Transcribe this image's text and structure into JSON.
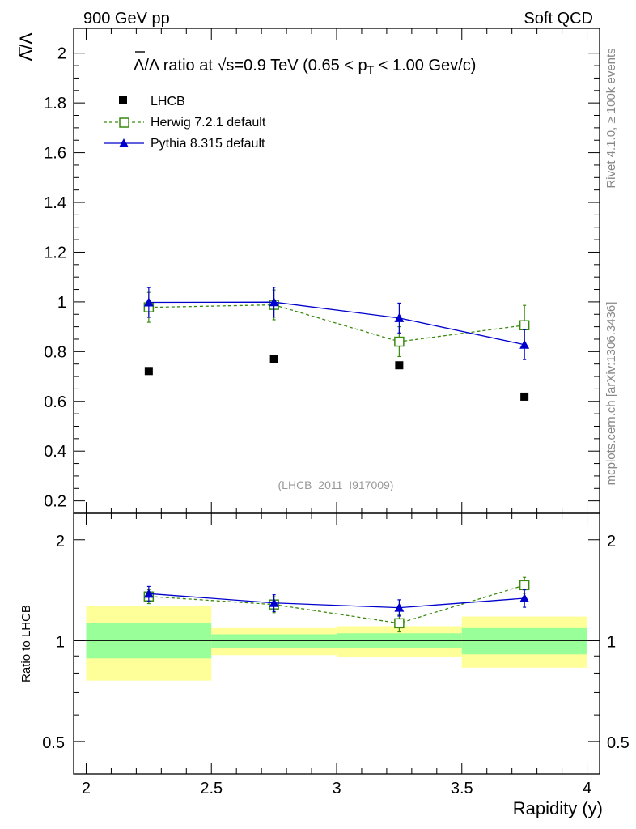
{
  "header": {
    "left": "900 GeV pp",
    "right": "Soft QCD"
  },
  "side_labels": {
    "top": "Rivet 4.1.0, ≥ 100k events",
    "bottom": "mcplots.cern.ch [arXiv:1306.3436]"
  },
  "colors": {
    "data": "#000000",
    "herwig": "#3a8a0e",
    "pythia": "#0000cc",
    "band_outer": "#ffff99",
    "band_inner": "#99ff99"
  },
  "chart_data": {
    "type": "scatter",
    "title": "Λ̅/Λ ratio at √s=0.9 TeV (0.65 < pT < 1.00 Gev/c)",
    "title_parts": {
      "pre": "/Λ ratio at ",
      "root": "s",
      "mid": "=0.9 TeV (0.65 < p",
      "sub": "T",
      "post": " < 1.00 Gev/c)",
      "lambda": "Λ"
    },
    "ylabel": "Λ/Λ",
    "ylabel_parts": {
      "num": "Λ",
      "den": "/Λ"
    },
    "xlabel": "Rapidity (y)",
    "ratio_ylabel": "Ratio to LHCB",
    "analysis_id": "(LHCB_2011_I917009)",
    "xlim": [
      1.95,
      4.05
    ],
    "ylim": [
      0.15,
      2.1
    ],
    "ratio_ylim": [
      0.4,
      2.4
    ],
    "x_ticks": [
      2,
      2.5,
      3,
      3.5,
      4
    ],
    "x_tick_labels": [
      "2",
      "2.5",
      "3",
      "3.5",
      "4"
    ],
    "y_ticks": [
      0.2,
      0.4,
      0.6,
      0.8,
      1.0,
      1.2,
      1.4,
      1.6,
      1.8,
      2.0
    ],
    "y_tick_labels": [
      "0.2",
      "0.4",
      "0.6",
      "0.8",
      "1",
      "1.2",
      "1.4",
      "1.6",
      "1.8",
      "2"
    ],
    "ratio_y_ticks": [
      0.5,
      1,
      2
    ],
    "ratio_y_tick_labels": [
      "0.5",
      "1",
      "2"
    ],
    "legend": [
      "LHCB",
      "Herwig 7.2.1 default",
      "Pythia 8.315 default"
    ],
    "legend_position": "top-left",
    "series": [
      {
        "name": "LHCB",
        "marker": "square",
        "x": [
          2.25,
          2.75,
          3.25,
          3.75
        ],
        "y": [
          0.722,
          0.771,
          0.745,
          0.619
        ],
        "yerr": [
          0.0,
          0.0,
          0.0,
          0.0
        ]
      },
      {
        "name": "Herwig 7.2.1 default",
        "marker": "open-square",
        "line": "dashed",
        "x": [
          2.25,
          2.75,
          3.25,
          3.75
        ],
        "y": [
          0.978,
          0.988,
          0.84,
          0.906
        ],
        "yerr": [
          0.06,
          0.06,
          0.06,
          0.08
        ]
      },
      {
        "name": "Pythia 8.315 default",
        "marker": "triangle",
        "line": "solid",
        "x": [
          2.25,
          2.75,
          3.25,
          3.75
        ],
        "y": [
          0.998,
          0.999,
          0.935,
          0.828
        ],
        "yerr": [
          0.06,
          0.06,
          0.06,
          0.06
        ]
      }
    ],
    "ratio_series": [
      {
        "name": "Herwig 7.2.1 default",
        "y": [
          1.355,
          1.282,
          1.127,
          1.464
        ],
        "yerr": [
          0.065,
          0.07,
          0.065,
          0.08
        ]
      },
      {
        "name": "Pythia 8.315 default",
        "y": [
          1.381,
          1.296,
          1.254,
          1.338
        ],
        "yerr": [
          0.07,
          0.075,
          0.07,
          0.08
        ]
      }
    ],
    "uncertainty_bands": [
      {
        "x": [
          2.0,
          2.5
        ],
        "inner": [
          0.885,
          1.13
        ],
        "outer": [
          0.76,
          1.27
        ]
      },
      {
        "x": [
          2.5,
          3.0
        ],
        "inner": [
          0.952,
          1.045
        ],
        "outer": [
          0.905,
          1.09
        ]
      },
      {
        "x": [
          3.0,
          3.5
        ],
        "inner": [
          0.948,
          1.052
        ],
        "outer": [
          0.895,
          1.105
        ]
      },
      {
        "x": [
          3.5,
          4.0
        ],
        "inner": [
          0.91,
          1.09
        ],
        "outer": [
          0.83,
          1.18
        ]
      }
    ]
  }
}
